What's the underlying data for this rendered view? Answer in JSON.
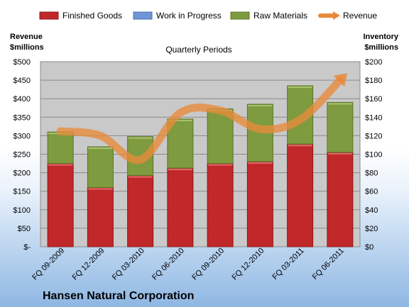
{
  "chart_data": {
    "type": "bar",
    "stacked": true,
    "title": "Quarterly Periods",
    "company": "Hansen Natural Corporation",
    "left_axis_title": [
      "Revenue",
      "$millions"
    ],
    "right_axis_title": [
      "Inventory",
      "$millions"
    ],
    "categories": [
      "FQ 09-2009",
      "FQ 12-2009",
      "FQ 03-2010",
      "FQ 06-2010",
      "FQ 09-2010",
      "FQ 12-2010",
      "FQ 03-2011",
      "FQ 06-2011"
    ],
    "left_ticks": [
      "$-",
      "$50",
      "$100",
      "$150",
      "$200",
      "$250",
      "$300",
      "$350",
      "$400",
      "$450",
      "$500"
    ],
    "right_ticks": [
      "$0",
      "$20",
      "$40",
      "$60",
      "$80",
      "$100",
      "$120",
      "$140",
      "$160",
      "$180",
      "$200"
    ],
    "left_ylim": [
      0,
      500
    ],
    "right_ylim": [
      0,
      200
    ],
    "grid": true,
    "legend_position": "top",
    "series": [
      {
        "name": "Finished Goods",
        "color": "#c0282a",
        "axis": "right",
        "values": [
          90,
          64,
          77,
          85,
          90,
          92,
          111,
          102
        ]
      },
      {
        "name": "Work in Progress",
        "color": "#6f95d4",
        "axis": "right",
        "values": [
          0,
          0,
          0,
          0,
          0,
          0,
          0,
          0
        ]
      },
      {
        "name": "Raw Materials",
        "color": "#7e9b3f",
        "axis": "right",
        "values": [
          34,
          44,
          42,
          53,
          59,
          62,
          63,
          54
        ]
      },
      {
        "name": "Revenue",
        "color": "#e88a3a",
        "axis": "left",
        "type": "line",
        "values": [
          312,
          300,
          235,
          362,
          368,
          318,
          343,
          450
        ]
      }
    ]
  }
}
